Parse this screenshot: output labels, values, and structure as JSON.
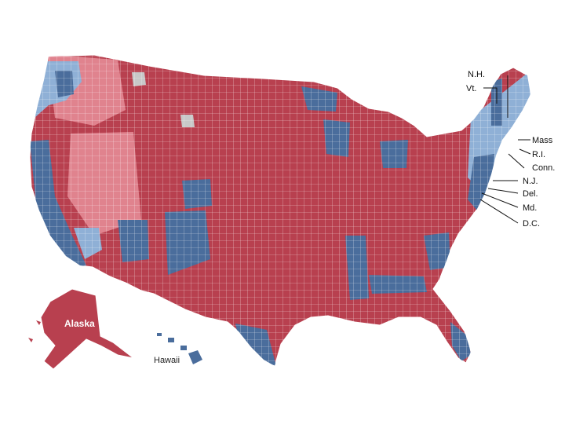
{
  "map": {
    "colors": {
      "dark_red": "#b8404f",
      "light_red": "#e0838e",
      "dark_blue": "#4a6d9c",
      "light_blue": "#8fb0d6",
      "gray": "#c8c8c8",
      "border": "#ffffff"
    },
    "labels": {
      "alaska": "Alaska",
      "hawaii": "Hawaii"
    },
    "callouts": [
      {
        "id": "nh",
        "text": "N.H."
      },
      {
        "id": "vt",
        "text": "Vt."
      },
      {
        "id": "mass",
        "text": "Mass"
      },
      {
        "id": "ri",
        "text": "R.I."
      },
      {
        "id": "conn",
        "text": "Conn."
      },
      {
        "id": "nj",
        "text": "N.J."
      },
      {
        "id": "del",
        "text": "Del."
      },
      {
        "id": "md",
        "text": "Md."
      },
      {
        "id": "dc",
        "text": "D.C."
      }
    ]
  }
}
